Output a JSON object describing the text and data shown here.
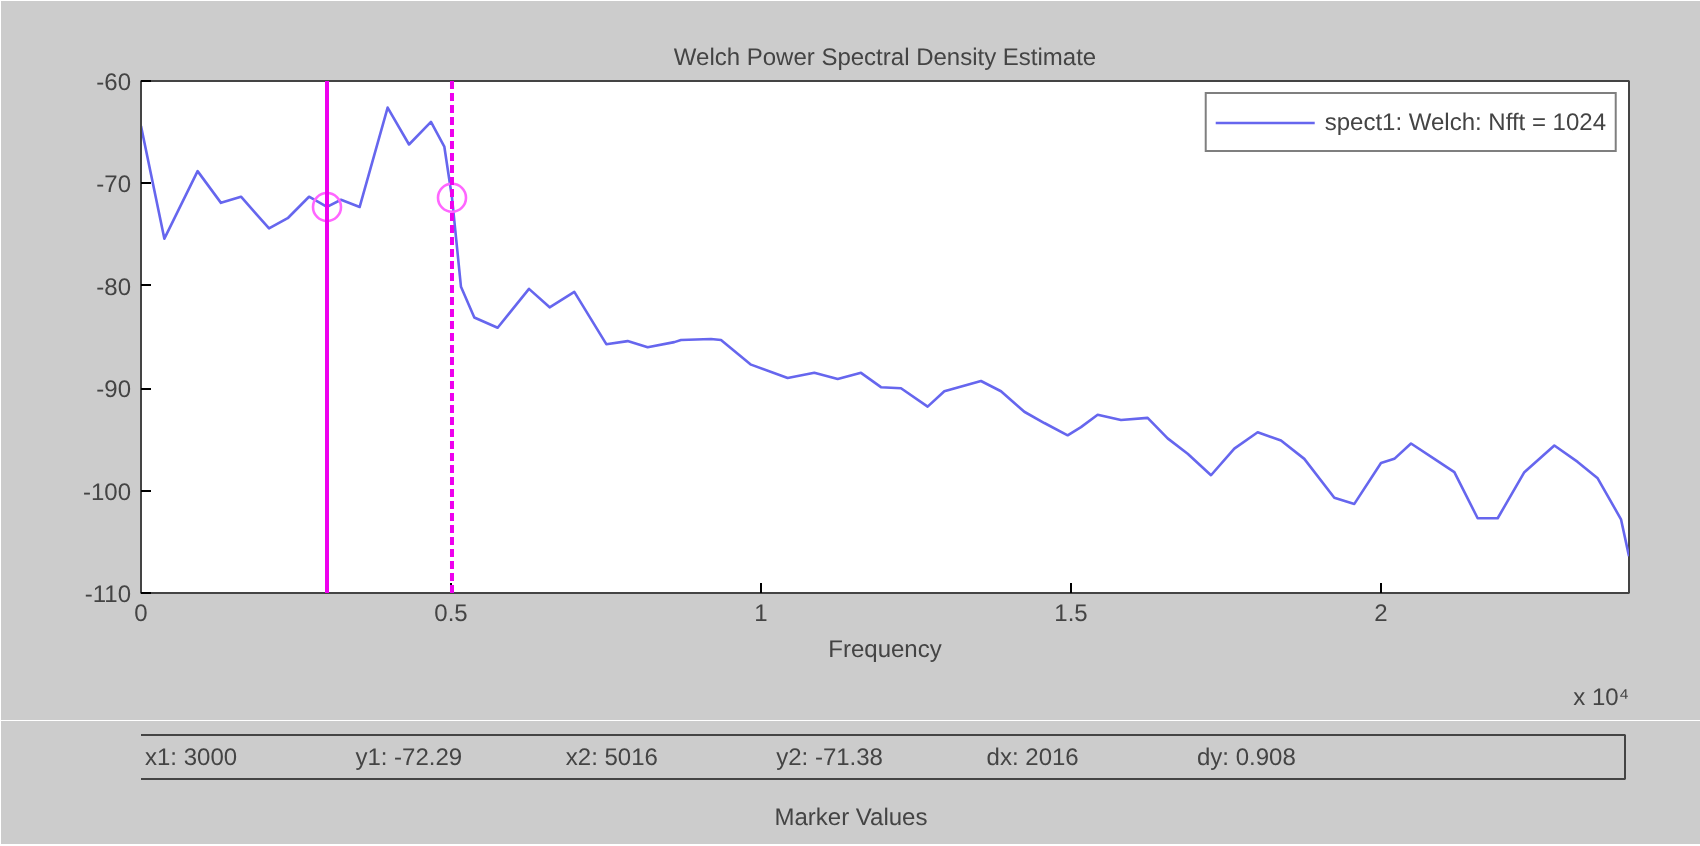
{
  "chart_data": {
    "type": "line",
    "title": "Welch Power Spectral Density Estimate",
    "xlabel": "Frequency",
    "xlim": [
      0,
      2.4
    ],
    "ylim": [
      -110,
      -60
    ],
    "xticks": [
      0,
      0.5,
      1,
      1.5,
      2
    ],
    "yticks": [
      -110,
      -100,
      -90,
      -80,
      -70,
      -60
    ],
    "grid": false,
    "legend": "top right",
    "series": [
      {
        "name": "spect1: Welch: Nfft = 1024",
        "color": "#6666ee",
        "marker": "none",
        "x": [
          0,
          0.0377,
          0.0913,
          0.129,
          0.1613,
          0.2065,
          0.2366,
          0.271,
          0.3,
          0.3226,
          0.3527,
          0.3978,
          0.4323,
          0.4677,
          0.4892,
          0.5016,
          0.5161,
          0.5376,
          0.5752,
          0.6258,
          0.6591,
          0.6989,
          0.7505,
          0.7849,
          0.8172,
          0.8602,
          0.871,
          0.9194,
          0.9355,
          0.9839,
          1.043,
          1.086,
          1.1237,
          1.1613,
          1.1935,
          1.2258,
          1.2688,
          1.2957,
          1.3548,
          1.3871,
          1.4247,
          1.457,
          1.4946,
          1.5161,
          1.543,
          1.5806,
          1.6236,
          1.6559,
          1.6882,
          1.7258,
          1.7634,
          1.8011,
          1.8387,
          1.8763,
          1.9247,
          1.957,
          2.0,
          2.0215,
          2.0484,
          2.086,
          2.1183,
          2.1559,
          2.1882,
          2.2312,
          2.2796,
          2.3172,
          2.3495,
          2.3871,
          2.4
        ],
        "values": [
          -64.4,
          -75.4,
          -68.8,
          -71.9,
          -71.3,
          -74.4,
          -73.4,
          -71.3,
          -72.29,
          -71.6,
          -72.3,
          -62.6,
          -66.2,
          -64.0,
          -66.4,
          -71.38,
          -80.1,
          -83.1,
          -84.1,
          -80.3,
          -82.1,
          -80.6,
          -85.7,
          -85.4,
          -86.0,
          -85.5,
          -85.3,
          -85.2,
          -85.3,
          -87.7,
          -89.0,
          -88.5,
          -89.1,
          -88.5,
          -89.9,
          -90.0,
          -91.8,
          -90.3,
          -89.3,
          -90.3,
          -92.3,
          -93.4,
          -94.6,
          -93.8,
          -92.6,
          -93.1,
          -92.9,
          -94.9,
          -96.4,
          -98.5,
          -95.9,
          -94.3,
          -95.1,
          -96.9,
          -100.7,
          -101.3,
          -97.3,
          -96.9,
          -95.4,
          -96.9,
          -98.2,
          -102.7,
          -102.7,
          -98.2,
          -95.6,
          -97.2,
          -98.8,
          -102.8,
          -106.4
        ]
      },
      {
        "color": "#ff66ff",
        "type": "scatter",
        "marker": "circle",
        "x": [
          0.3,
          0.5016
        ],
        "values": [
          -72.3,
          -71.4
        ]
      }
    ],
    "ref_lines": [
      {
        "axis": "x",
        "value": 0.3,
        "color": "#ee00ee",
        "line_style": "solid"
      },
      {
        "axis": "x",
        "value": 0.5016,
        "color": "#ee00ee",
        "line_style": "dashed"
      }
    ],
    "annotations": [
      "x 10⁴",
      "x1: 3000",
      "y1: -72.29",
      "x2: 5016",
      "y2: -71.38",
      "dx: 2016",
      "dy: 0.908",
      "Marker Values"
    ]
  }
}
